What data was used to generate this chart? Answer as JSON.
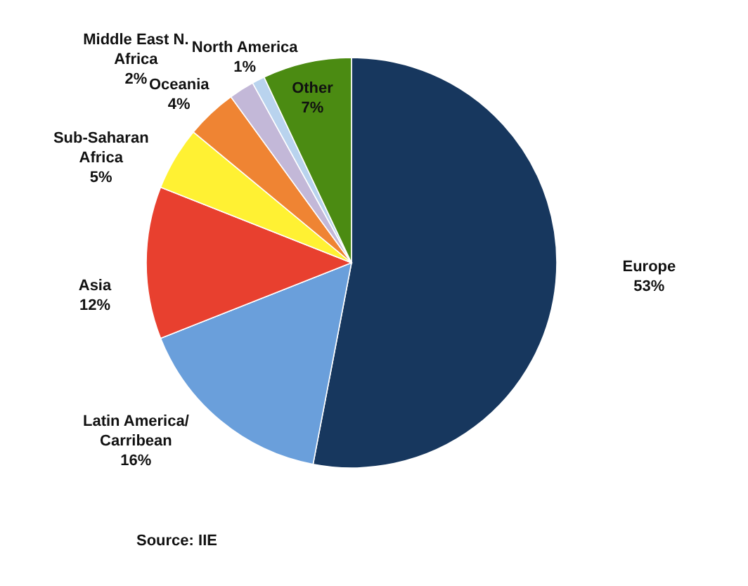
{
  "chart_data": {
    "type": "pie",
    "categories": [
      "Europe",
      "Latin America/Carribean",
      "Asia",
      "Sub-Saharan Africa",
      "Oceania",
      "Middle East N. Africa",
      "North America",
      "Other"
    ],
    "values": [
      53,
      16,
      12,
      5,
      4,
      2,
      1,
      7
    ],
    "value_labels": [
      "53%",
      "16%",
      "12%",
      "5%",
      "4%",
      "2%",
      "1%",
      "7%"
    ],
    "colors": [
      "#17375e",
      "#6a9fdb",
      "#e8402f",
      "#fff133",
      "#ef8433",
      "#c3b8d8",
      "#b9d3ee",
      "#4b8b12"
    ],
    "annotations": [
      "Source: IIE"
    ]
  }
}
